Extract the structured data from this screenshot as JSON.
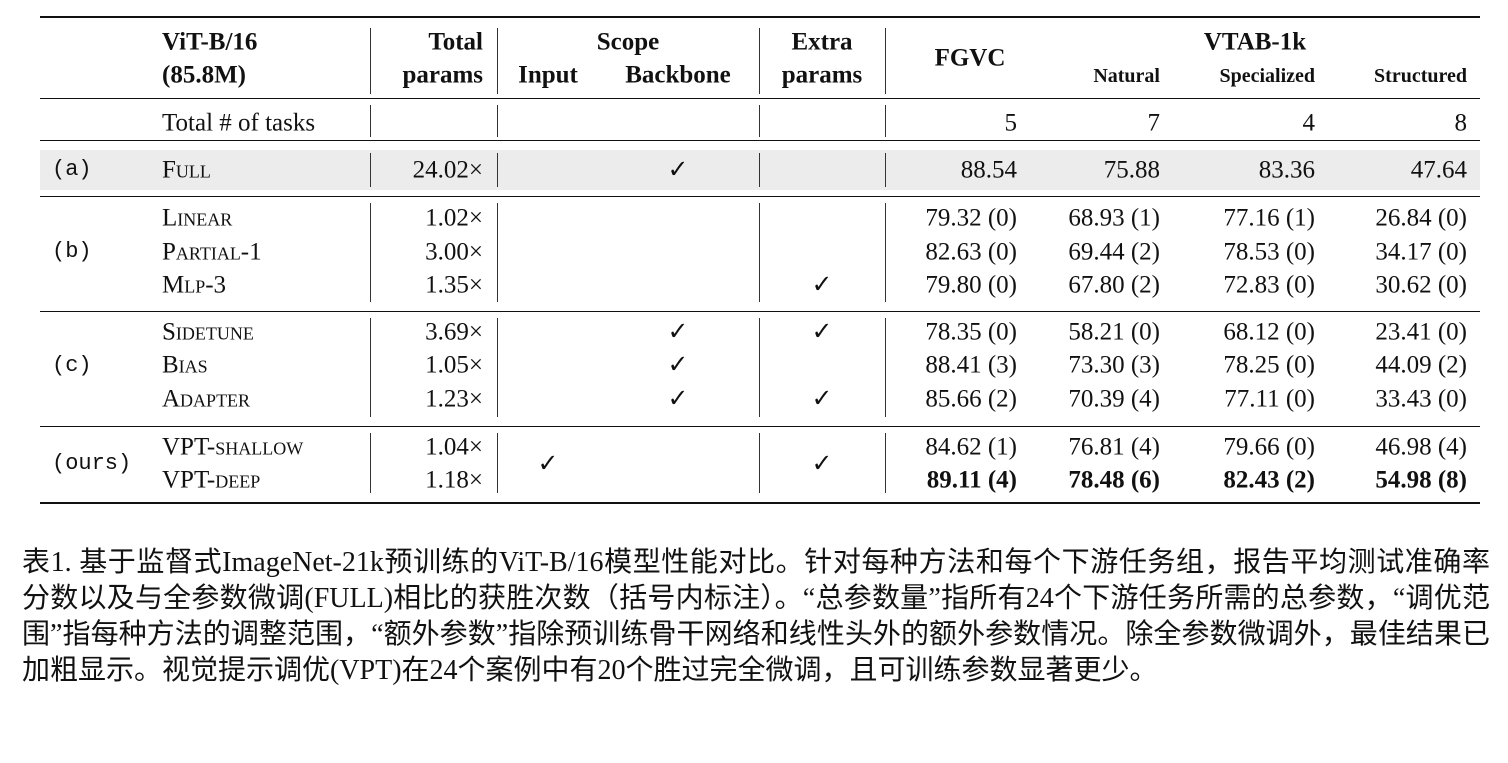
{
  "table": {
    "header": {
      "model": [
        "ViT-B/16",
        "(85.8M)"
      ],
      "total_params": [
        "Total",
        "params"
      ],
      "scope": "Scope",
      "scope_cols": [
        "Input",
        "Backbone"
      ],
      "extra": [
        "Extra",
        "params"
      ],
      "fgvc": "FGVC",
      "vtab": "VTAB-1k",
      "vtab_cols": [
        "Natural",
        "Specialized",
        "Structured"
      ]
    },
    "tasks": {
      "label": "Total # of tasks",
      "values": [
        5,
        7,
        4,
        8
      ]
    },
    "groups": [
      {
        "label": "(a)",
        "shaded": true,
        "rows": [
          {
            "method": "Full",
            "params": "24.02×",
            "backbone": "✓",
            "scores": [
              88.54,
              75.88,
              83.36,
              47.64
            ]
          }
        ]
      },
      {
        "label": "(b)",
        "rows": [
          {
            "method": "Linear",
            "params": "1.02×",
            "scores": [
              "79.32 (0)",
              "68.93 (1)",
              "77.16 (1)",
              "26.84 (0)"
            ]
          },
          {
            "method": "Partial-1",
            "params": "3.00×",
            "scores": [
              "82.63 (0)",
              "69.44 (2)",
              "78.53 (0)",
              "34.17 (0)"
            ]
          },
          {
            "method": "Mlp-3",
            "params": "1.35×",
            "extra": "✓",
            "scores": [
              "79.80 (0)",
              "67.80 (2)",
              "72.83 (0)",
              "30.62 (0)"
            ]
          }
        ]
      },
      {
        "label": "(c)",
        "rows": [
          {
            "method": "Sidetune",
            "params": "3.69×",
            "backbone": "✓",
            "extra": "✓",
            "scores": [
              "78.35 (0)",
              "58.21 (0)",
              "68.12 (0)",
              "23.41 (0)"
            ]
          },
          {
            "method": "Bias",
            "params": "1.05×",
            "backbone": "✓",
            "scores": [
              "88.41 (3)",
              "73.30 (3)",
              "78.25 (0)",
              "44.09 (2)"
            ]
          },
          {
            "method": "Adapter",
            "params": "1.23×",
            "backbone": "✓",
            "extra": "✓",
            "scores": [
              "85.66 (2)",
              "70.39 (4)",
              "77.11 (0)",
              "33.43 (0)"
            ]
          }
        ]
      },
      {
        "label": "(ours)",
        "input": "✓",
        "extra": "✓",
        "rows": [
          {
            "method": "VPT-shallow",
            "params": "1.04×",
            "scores": [
              "84.62 (1)",
              "76.81 (4)",
              "79.66 (0)",
              "46.98 (4)"
            ]
          },
          {
            "method": "VPT-deep",
            "params": "1.18×",
            "bold": true,
            "scores": [
              "89.11 (4)",
              "78.48 (6)",
              "82.43 (2)",
              "54.98 (8)"
            ]
          }
        ]
      }
    ]
  },
  "caption": "表1. 基于监督式ImageNet-21k预训练的ViT-B/16模型性能对比。针对每种方法和每个下游任务组，报告平均测试准确率分数以及与全参数微调(FULL)相比的获胜次数（括号内标注）。“总参数量”指所有24个下游任务所需的总参数，“调优范围”指每种方法的调整范围，“额外参数”指除预训练骨干网络和线性头外的额外参数情况。除全参数微调外，最佳结果已加粗显示。视觉提示调优(VPT)在24个案例中有20个胜过完全微调，且可训练参数显著更少。"
}
